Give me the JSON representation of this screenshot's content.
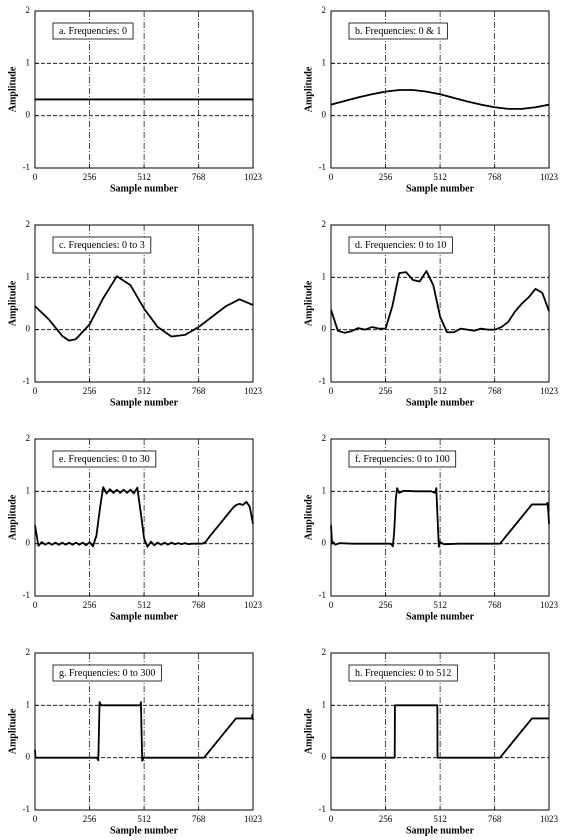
{
  "chart_data": [
    {
      "type": "line",
      "title": "a.  Frequencies:  0",
      "x_label": "Sample number",
      "y_label": "Amplitude",
      "color": "#000000",
      "x": [
        0,
        1023
      ],
      "values": [
        0.31,
        0.31
      ],
      "xlim": [
        0,
        1023
      ],
      "ylim": [
        -1,
        2
      ],
      "xticks": [
        0,
        256,
        512,
        768,
        1023
      ],
      "yticks": [
        -1,
        0,
        1,
        2
      ]
    },
    {
      "type": "line",
      "title": "b.  Frequencies:  0 & 1",
      "x_label": "Sample number",
      "y_label": "Amplitude",
      "color": "#000000",
      "x": [
        0,
        64,
        128,
        192,
        256,
        320,
        384,
        448,
        512,
        576,
        640,
        704,
        768,
        832,
        896,
        960,
        1023
      ],
      "values": [
        0.21,
        0.28,
        0.35,
        0.41,
        0.46,
        0.49,
        0.49,
        0.46,
        0.41,
        0.34,
        0.27,
        0.21,
        0.16,
        0.13,
        0.13,
        0.16,
        0.21
      ],
      "xlim": [
        0,
        1023
      ],
      "ylim": [
        -1,
        2
      ],
      "xticks": [
        0,
        256,
        512,
        768,
        1023
      ],
      "yticks": [
        -1,
        0,
        1,
        2
      ]
    },
    {
      "type": "line",
      "title": "c.  Frequencies:  0 to 3",
      "x_label": "Sample number",
      "y_label": "Amplitude",
      "color": "#000000",
      "x": [
        0,
        64,
        128,
        160,
        192,
        256,
        320,
        384,
        448,
        512,
        576,
        640,
        704,
        768,
        832,
        896,
        960,
        1023
      ],
      "values": [
        0.45,
        0.2,
        -0.12,
        -0.21,
        -0.18,
        0.1,
        0.6,
        1.02,
        0.85,
        0.4,
        0.05,
        -0.13,
        -0.1,
        0.05,
        0.25,
        0.45,
        0.58,
        0.47
      ],
      "xlim": [
        0,
        1023
      ],
      "ylim": [
        -1,
        2
      ],
      "xticks": [
        0,
        256,
        512,
        768,
        1023
      ],
      "yticks": [
        -1,
        0,
        1,
        2
      ]
    },
    {
      "type": "line",
      "title": "d.  Frequencies:  0 to 10",
      "x_label": "Sample number",
      "y_label": "Amplitude",
      "color": "#000000",
      "x": [
        0,
        32,
        64,
        96,
        128,
        160,
        192,
        224,
        256,
        288,
        320,
        352,
        384,
        416,
        448,
        480,
        512,
        544,
        576,
        608,
        640,
        672,
        704,
        736,
        768,
        800,
        832,
        864,
        896,
        928,
        960,
        992,
        1023
      ],
      "values": [
        0.38,
        -0.02,
        -0.06,
        -0.03,
        0.03,
        0.0,
        0.05,
        0.02,
        0.02,
        0.45,
        1.08,
        1.1,
        0.95,
        0.92,
        1.12,
        0.85,
        0.25,
        -0.05,
        -0.05,
        0.02,
        0.0,
        -0.02,
        0.02,
        0.0,
        0.0,
        0.05,
        0.15,
        0.35,
        0.5,
        0.62,
        0.78,
        0.7,
        0.35
      ],
      "xlim": [
        0,
        1023
      ],
      "ylim": [
        -1,
        2
      ],
      "xticks": [
        0,
        256,
        512,
        768,
        1023
      ],
      "yticks": [
        -1,
        0,
        1,
        2
      ]
    },
    {
      "type": "line",
      "title": "e.  Frequencies:  0 to 30",
      "x_label": "Sample number",
      "y_label": "Amplitude",
      "color": "#000000",
      "x": [
        0,
        16,
        32,
        48,
        64,
        80,
        96,
        112,
        128,
        144,
        160,
        176,
        192,
        208,
        224,
        240,
        256,
        272,
        288,
        304,
        320,
        336,
        352,
        368,
        384,
        400,
        416,
        432,
        448,
        464,
        480,
        496,
        512,
        528,
        544,
        560,
        576,
        592,
        608,
        624,
        640,
        656,
        672,
        688,
        704,
        720,
        736,
        752,
        768,
        784,
        800,
        816,
        832,
        848,
        864,
        880,
        896,
        912,
        928,
        944,
        960,
        976,
        992,
        1008,
        1023
      ],
      "values": [
        0.35,
        -0.04,
        0.03,
        -0.02,
        0.02,
        -0.02,
        0.02,
        -0.02,
        0.02,
        -0.02,
        0.02,
        -0.02,
        0.02,
        -0.02,
        0.02,
        -0.03,
        0.03,
        -0.05,
        0.15,
        0.65,
        1.08,
        0.96,
        1.04,
        0.97,
        1.03,
        0.97,
        1.03,
        0.97,
        1.03,
        0.96,
        1.07,
        0.6,
        0.1,
        -0.06,
        0.04,
        -0.03,
        0.02,
        -0.02,
        0.02,
        -0.02,
        0.02,
        -0.01,
        0.01,
        -0.01,
        0.01,
        -0.01,
        0.0,
        0.0,
        0.0,
        0.0,
        0.03,
        0.12,
        0.2,
        0.28,
        0.36,
        0.44,
        0.52,
        0.6,
        0.68,
        0.74,
        0.76,
        0.74,
        0.8,
        0.7,
        0.38
      ],
      "xlim": [
        0,
        1023
      ],
      "ylim": [
        -1,
        2
      ],
      "xticks": [
        0,
        256,
        512,
        768,
        1023
      ],
      "yticks": [
        -1,
        0,
        1,
        2
      ]
    },
    {
      "type": "line",
      "title": "f.  Frequencies:  0 to 100",
      "x_label": "Sample number",
      "y_label": "Amplitude",
      "color": "#000000",
      "x": [
        0,
        5,
        10,
        20,
        40,
        100,
        200,
        280,
        290,
        296,
        300,
        304,
        310,
        320,
        340,
        400,
        470,
        490,
        494,
        500,
        506,
        512,
        530,
        600,
        793,
        943,
        950,
        1010,
        1016,
        1020,
        1023
      ],
      "values": [
        0.35,
        0.0,
        0.03,
        -0.02,
        0.01,
        0.0,
        0.0,
        0.0,
        -0.05,
        0.2,
        0.5,
        0.85,
        1.06,
        0.97,
        1.01,
        1.0,
        1.0,
        0.97,
        1.06,
        0.5,
        -0.06,
        0.03,
        -0.01,
        0.0,
        0.0,
        0.75,
        0.75,
        0.75,
        0.78,
        0.6,
        0.38
      ],
      "xlim": [
        0,
        1023
      ],
      "ylim": [
        -1,
        2
      ],
      "xticks": [
        0,
        256,
        512,
        768,
        1023
      ],
      "yticks": [
        -1,
        0,
        1,
        2
      ]
    },
    {
      "type": "line",
      "title": "g.  Frequencies:  0 to 300",
      "x_label": "Sample number",
      "y_label": "Amplitude",
      "color": "#000000",
      "x": [
        0,
        2,
        290,
        297,
        300,
        303,
        310,
        495,
        497,
        500,
        503,
        510,
        793,
        943,
        1018,
        1020,
        1023
      ],
      "values": [
        0.15,
        0.0,
        0.0,
        -0.05,
        0.5,
        1.06,
        1.0,
        1.0,
        1.06,
        0.5,
        -0.06,
        0.0,
        0.0,
        0.75,
        0.75,
        0.82,
        0.72
      ],
      "xlim": [
        0,
        1023
      ],
      "ylim": [
        -1,
        2
      ],
      "xticks": [
        0,
        256,
        512,
        768,
        1023
      ],
      "yticks": [
        -1,
        0,
        1,
        2
      ]
    },
    {
      "type": "line",
      "title": "h.  Frequencies:  0 to 512",
      "x_label": "Sample number",
      "y_label": "Amplitude",
      "color": "#000000",
      "x": [
        0,
        299,
        300,
        499,
        500,
        793,
        943,
        1023
      ],
      "values": [
        0.0,
        0.0,
        1.0,
        1.0,
        0.0,
        0.0,
        0.75,
        0.75
      ],
      "xlim": [
        0,
        1023
      ],
      "ylim": [
        -1,
        2
      ],
      "xticks": [
        0,
        256,
        512,
        768,
        1023
      ],
      "yticks": [
        -1,
        0,
        1,
        2
      ]
    }
  ]
}
